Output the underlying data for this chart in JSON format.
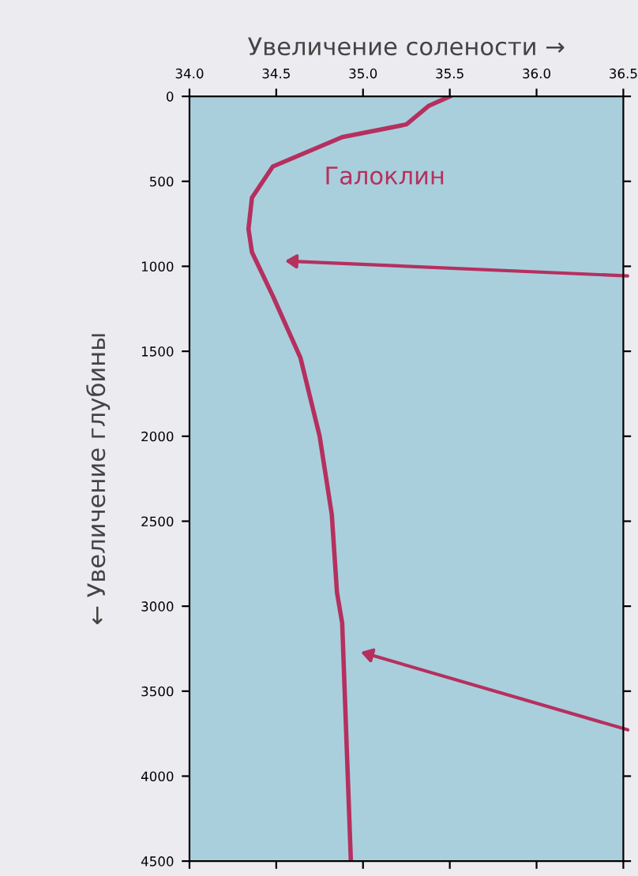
{
  "chart_data": {
    "type": "line",
    "xlabel": "Увеличение солености →",
    "ylabel": "← Увеличение глубины",
    "xlim": [
      34.0,
      36.5
    ],
    "xticks": [
      {
        "value": 34.0,
        "label": "34.0"
      },
      {
        "value": 34.5,
        "label": "34.5"
      },
      {
        "value": 35.0,
        "label": "35.0"
      },
      {
        "value": 35.5,
        "label": "35.5"
      },
      {
        "value": 36.0,
        "label": "36.0"
      },
      {
        "value": 36.5,
        "label": "36.5"
      }
    ],
    "ylim": [
      4500,
      0
    ],
    "yticks": [
      0,
      500,
      1000,
      1500,
      2000,
      2500,
      3000,
      3500,
      4000,
      4500
    ],
    "series": [
      {
        "color": "#b5305f",
        "x": [
          35.5,
          35.38,
          35.25,
          34.88,
          34.48,
          34.36,
          34.34,
          34.36,
          34.48,
          34.64,
          34.75,
          34.82,
          34.85,
          34.88,
          34.93
        ],
        "values": [
          0,
          55,
          165,
          240,
          413,
          596,
          780,
          917,
          1174,
          1540,
          2000,
          2460,
          2920,
          3100,
          4500
        ]
      }
    ],
    "annotations": [
      "Галоклин"
    ],
    "grid": false,
    "legend": false,
    "marker": "none",
    "line_style": "solid"
  }
}
